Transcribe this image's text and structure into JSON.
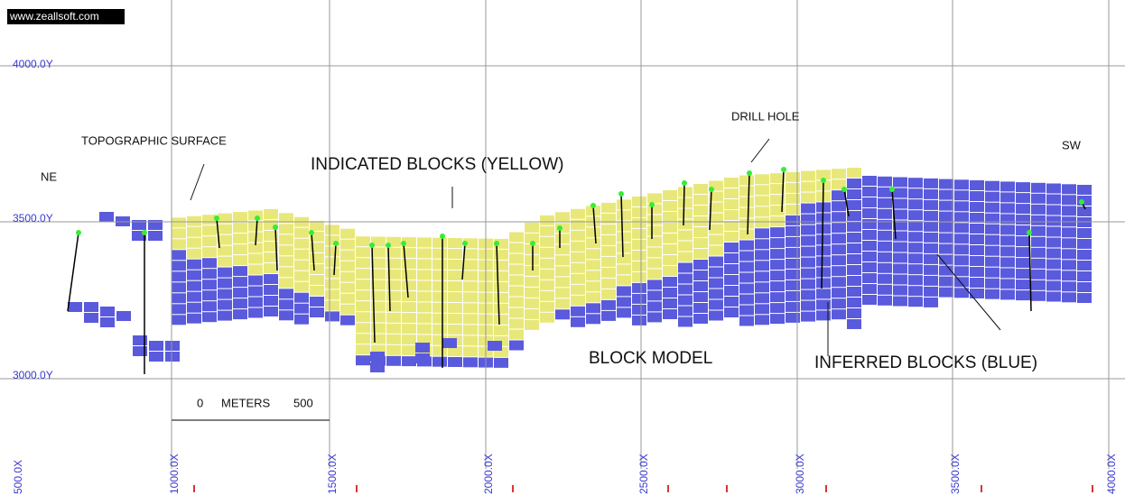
{
  "watermark": "www.zeallsoft.com",
  "annotations": [
    "TOPOGRAPHIC SURFACE",
    "INDICATED BLOCKS (YELLOW)",
    "DRILL HOLE",
    "NE",
    "SW",
    "BLOCK MODEL",
    "INFERRED BLOCKS (BLUE)"
  ],
  "y_axis_labels": [
    "4000.0Y",
    "3500.0Y",
    "3000.0Y"
  ],
  "x_axis_labels": [
    "500.0X",
    "1000.0X",
    "1500.0X",
    "2000.0X",
    "2500.0X",
    "3000.0X",
    "3500.0X",
    "4000.0X"
  ],
  "scale_bar": [
    "0",
    "METERS",
    "500"
  ]
}
